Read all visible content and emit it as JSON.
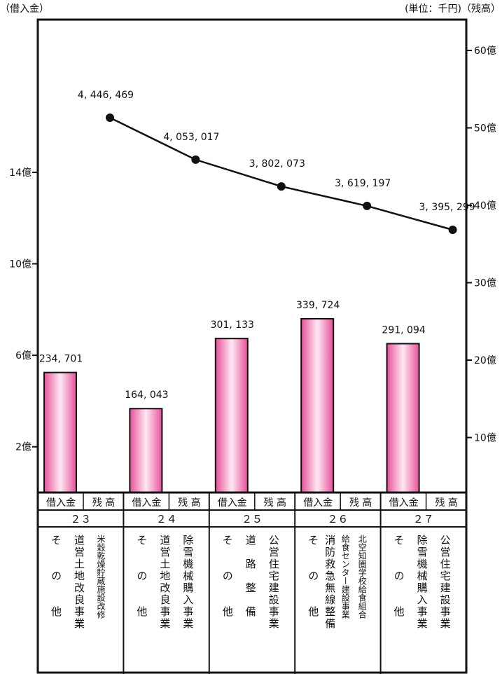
{
  "header": {
    "left_unit": "（借入金）",
    "right_unit": "(単位：千円)（残高）"
  },
  "chart_data": {
    "type": "bar+line",
    "categories": [
      "２３",
      "２４",
      "２５",
      "２６",
      "２７"
    ],
    "left_axis": {
      "ticks": [
        "14億",
        "10億",
        "6億",
        "2億"
      ],
      "tick_values": [
        140,
        100,
        60,
        20
      ],
      "ylim": [
        0,
        170
      ]
    },
    "right_axis": {
      "ticks": [
        "60億",
        "50億",
        "40億",
        "30億",
        "20億",
        "10億"
      ],
      "tick_values": [
        60,
        50,
        40,
        30,
        20,
        10
      ],
      "ylim": [
        0,
        62
      ]
    },
    "bars": {
      "values": [
        234701,
        164043,
        301133,
        339724,
        291094
      ],
      "labels": [
        "234, 701",
        "164, 043",
        "301, 133",
        "339, 724",
        "291, 094"
      ],
      "color": "#e8509a"
    },
    "line": {
      "values": [
        4446469,
        4053017,
        3802073,
        3619197,
        3395299
      ],
      "labels": [
        "4, 446, 469",
        "4, 053, 017",
        "3, 802, 073",
        "3, 619, 197",
        "3, 395, 299"
      ]
    },
    "sub_labels": [
      "借入金",
      "残 高"
    ]
  },
  "projects": [
    {
      "cols": [
        "そ　　の　　他",
        "道営土地改良事業",
        "米穀乾燥貯蔵施設改修"
      ]
    },
    {
      "cols": [
        "そ　　の　　他",
        "道営土地改良事業",
        "除雪機械購入事業"
      ]
    },
    {
      "cols": [
        "そ　　の　　他",
        "道　路　整　備",
        "公営住宅建設事業"
      ]
    },
    {
      "cols": [
        "そ　　の　　他",
        "消防救急無線整備",
        "給食センター建設事業",
        "北空知圏学校給食組合"
      ]
    },
    {
      "cols": [
        "そ　　の　　他",
        "除雪機械購入事業",
        "公営住宅建設事業"
      ]
    }
  ]
}
